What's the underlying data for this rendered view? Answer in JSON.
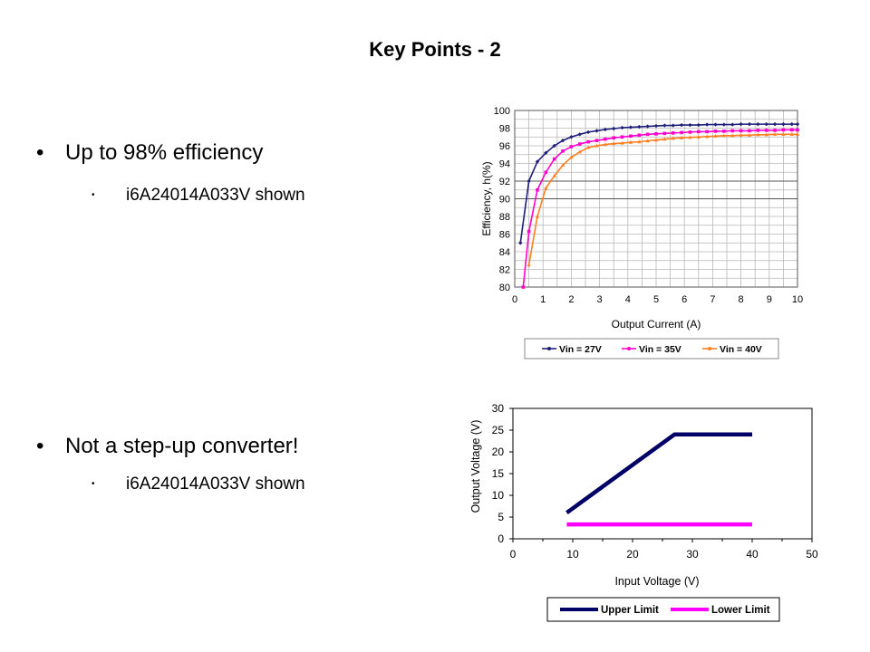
{
  "slide": {
    "title": "Key Points - 2",
    "bullets": [
      {
        "text": "Up to 98% efficiency",
        "sub": "i6A24014A033V  shown"
      },
      {
        "text": "Not a step-up converter!",
        "sub": "i6A24014A033V  shown"
      }
    ]
  },
  "chart_data": [
    {
      "type": "line",
      "xlabel": "Output Current (A)",
      "ylabel": "Efficiency, h(%)",
      "xlim": [
        0,
        10
      ],
      "ylim": [
        80,
        100
      ],
      "x_ticks": [
        "0",
        "1",
        "2",
        "3",
        "4",
        "5",
        "6",
        "7",
        "8",
        "9",
        "10"
      ],
      "y_ticks": [
        "80",
        "82",
        "84",
        "86",
        "88",
        "90",
        "92",
        "94",
        "96",
        "98",
        "100"
      ],
      "grid": true,
      "legend": "bottom",
      "series": [
        {
          "name": "Vin = 27V",
          "color": "#1f1f7a",
          "x": [
            0.2,
            0.5,
            0.8,
            1.1,
            1.4,
            1.7,
            2.0,
            2.3,
            2.6,
            2.9,
            3.2,
            3.5,
            3.8,
            4.1,
            4.4,
            4.7,
            5.0,
            5.3,
            5.6,
            5.9,
            6.2,
            6.5,
            6.8,
            7.1,
            7.4,
            7.7,
            8.0,
            8.3,
            8.6,
            8.9,
            9.2,
            9.5,
            9.8,
            10.0
          ],
          "y": [
            85,
            92,
            94.2,
            95.2,
            96,
            96.6,
            97,
            97.3,
            97.55,
            97.7,
            97.85,
            97.95,
            98.05,
            98.1,
            98.15,
            98.2,
            98.25,
            98.3,
            98.3,
            98.35,
            98.35,
            98.35,
            98.4,
            98.4,
            98.4,
            98.4,
            98.45,
            98.45,
            98.45,
            98.45,
            98.45,
            98.45,
            98.45,
            98.45
          ]
        },
        {
          "name": "Vin = 35V",
          "color": "#ff00cc",
          "x": [
            0.3,
            0.5,
            0.8,
            1.1,
            1.4,
            1.7,
            2.0,
            2.3,
            2.6,
            2.9,
            3.2,
            3.5,
            3.8,
            4.1,
            4.4,
            4.7,
            5.0,
            5.3,
            5.6,
            5.9,
            6.2,
            6.5,
            6.8,
            7.1,
            7.4,
            7.7,
            8.0,
            8.3,
            8.6,
            8.9,
            9.2,
            9.5,
            9.8,
            10.0
          ],
          "y": [
            80,
            86.3,
            91,
            93,
            94.5,
            95.4,
            95.9,
            96.2,
            96.45,
            96.6,
            96.75,
            96.9,
            97,
            97.1,
            97.2,
            97.3,
            97.35,
            97.4,
            97.45,
            97.5,
            97.55,
            97.6,
            97.6,
            97.65,
            97.65,
            97.7,
            97.7,
            97.7,
            97.75,
            97.75,
            97.75,
            97.8,
            97.8,
            97.8
          ]
        },
        {
          "name": "Vin = 40V",
          "color": "#ff7f1f",
          "x": [
            0.5,
            0.8,
            1.1,
            1.4,
            1.7,
            2.0,
            2.3,
            2.6,
            2.9,
            3.2,
            3.5,
            3.8,
            4.1,
            4.4,
            4.7,
            5.0,
            5.3,
            5.6,
            5.9,
            6.2,
            6.5,
            6.8,
            7.1,
            7.4,
            7.7,
            8.0,
            8.3,
            8.6,
            8.9,
            9.2,
            9.5,
            9.8,
            10.0
          ],
          "y": [
            82.5,
            88,
            91.2,
            92.6,
            93.8,
            94.7,
            95.3,
            95.8,
            96,
            96.15,
            96.25,
            96.3,
            96.4,
            96.45,
            96.55,
            96.65,
            96.75,
            96.85,
            96.9,
            96.95,
            97,
            97.05,
            97.1,
            97.15,
            97.15,
            97.2,
            97.2,
            97.25,
            97.25,
            97.3,
            97.3,
            97.3,
            97.3
          ]
        }
      ]
    },
    {
      "type": "line",
      "xlabel": "Input Voltage  (V)",
      "ylabel": "Output Voltage (V)",
      "xlim": [
        0,
        50
      ],
      "ylim": [
        0,
        30
      ],
      "x_ticks": [
        "0",
        "10",
        "20",
        "30",
        "40",
        "50"
      ],
      "y_ticks": [
        "0",
        "5",
        "10",
        "15",
        "20",
        "25",
        "30"
      ],
      "grid": false,
      "legend": "bottom",
      "series": [
        {
          "name": "Upper Limit",
          "color": "#000066",
          "x": [
            9,
            27,
            40
          ],
          "y": [
            6,
            24,
            24
          ]
        },
        {
          "name": "Lower Limit",
          "color": "#ff00ff",
          "x": [
            9,
            40
          ],
          "y": [
            3.3,
            3.3
          ]
        }
      ]
    }
  ]
}
